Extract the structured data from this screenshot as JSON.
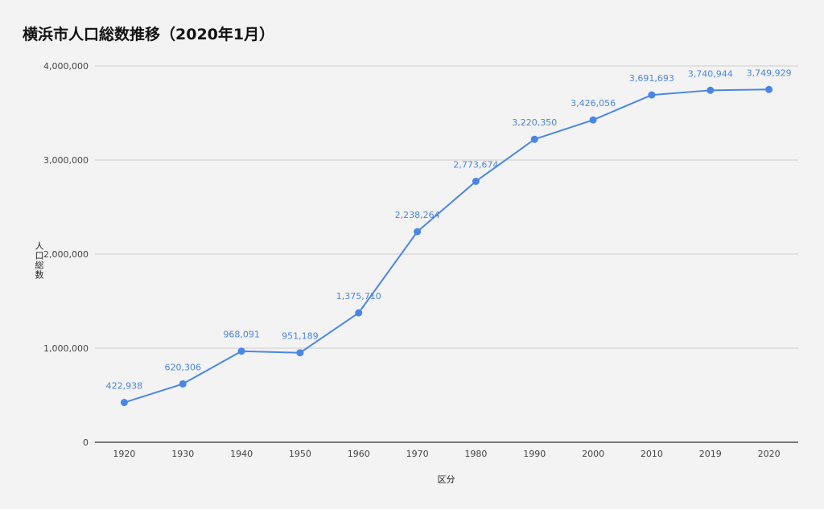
{
  "chart_data": {
    "type": "line",
    "title": "横浜市人口総数推移（2020年1月）",
    "xlabel": "区分",
    "ylabel": "人口総数",
    "categories": [
      "1920",
      "1930",
      "1940",
      "1950",
      "1960",
      "1970",
      "1980",
      "1990",
      "2000",
      "2010",
      "2019",
      "2020"
    ],
    "series": [
      {
        "values": [
          422938,
          620306,
          968091,
          951189,
          1375710,
          2238264,
          2773674,
          3220350,
          3426056,
          3691693,
          3740944,
          3749929
        ],
        "data_labels": [
          "422,938",
          "620,306",
          "968,091",
          "951,189",
          "1,375,710",
          "2,238,264",
          "2,773,674",
          "3,220,350",
          "3,426,056",
          "3,691,693",
          "3,740,944",
          "3,749,929"
        ]
      }
    ],
    "ylim": [
      0,
      4000000
    ],
    "yticks": [
      0,
      1000000,
      2000000,
      3000000,
      4000000
    ],
    "ytick_labels": [
      "0",
      "1,000,000",
      "2,000,000",
      "3,000,000",
      "4,000,000"
    ],
    "grid": true,
    "legend": "none",
    "colors": {
      "line": "#4a86e8",
      "grid": "#cccccc",
      "axis": "#333333"
    }
  }
}
